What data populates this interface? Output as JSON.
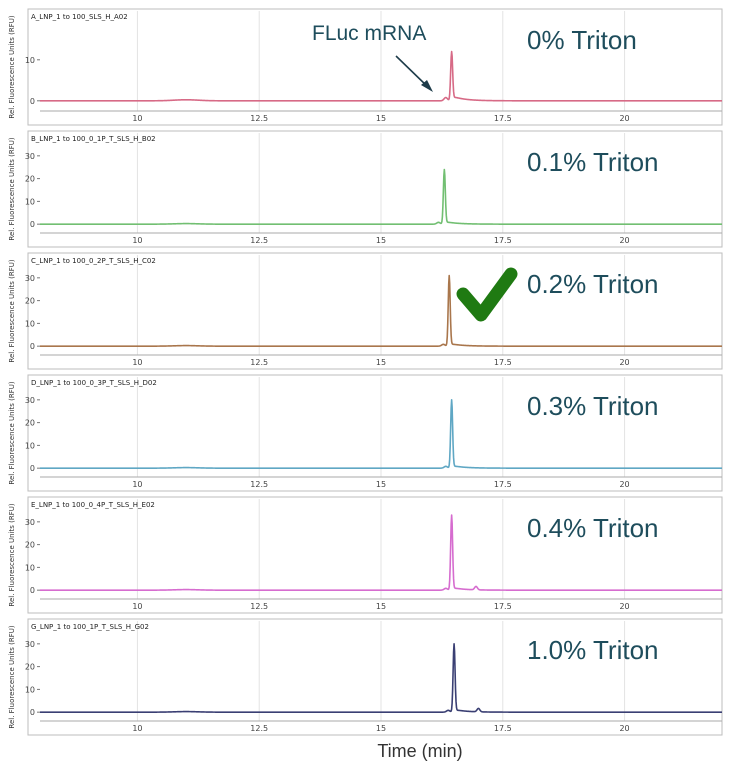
{
  "figure": {
    "x_axis_title": "Time (min)",
    "y_axis_title": "Rel. Fluorescence Units (RFU)",
    "annotation": "FLuc mRNA",
    "checkmark_color": "#1f7a12"
  },
  "chart_data": [
    {
      "type": "line",
      "title": "A_LNP_1 to 100_SLS_H_A02",
      "condition": "0% Triton",
      "color": "#d76a86",
      "xlim": [
        8,
        22
      ],
      "ylim": [
        -2,
        18
      ],
      "x_ticks": [
        10,
        12.5,
        15,
        17.5,
        20
      ],
      "x_tick_labels": [
        "10",
        "12.5",
        "15",
        "17.5",
        "20"
      ],
      "y_ticks": [
        0,
        10
      ],
      "y_tick_labels": [
        "0",
        "10"
      ],
      "peak": {
        "x": 16.45,
        "y": 12
      },
      "secondary_peak": null,
      "baseline": 0
    },
    {
      "type": "line",
      "title": "B_LNP_1 to 100_0_1P_T_SLS_H_B02",
      "condition": "0.1% Triton",
      "color": "#72bf72",
      "xlim": [
        8,
        22
      ],
      "ylim": [
        -3,
        33
      ],
      "x_ticks": [
        10,
        12.5,
        15,
        17.5,
        20
      ],
      "x_tick_labels": [
        "10",
        "12.5",
        "15",
        "17.5",
        "20"
      ],
      "y_ticks": [
        0,
        10,
        20,
        30
      ],
      "y_tick_labels": [
        "0",
        "10",
        "20",
        "30"
      ],
      "peak": {
        "x": 16.3,
        "y": 24
      },
      "secondary_peak": null,
      "baseline": 0
    },
    {
      "type": "line",
      "title": "C_LNP_1 to 100_0_2P_T_SLS_H_C02",
      "condition": "0.2% Triton",
      "color": "#a9764c",
      "xlim": [
        8,
        22
      ],
      "ylim": [
        -3,
        33
      ],
      "x_ticks": [
        10,
        12.5,
        15,
        17.5,
        20
      ],
      "x_tick_labels": [
        "10",
        "12.5",
        "15",
        "17.5",
        "20"
      ],
      "y_ticks": [
        0,
        10,
        20,
        30
      ],
      "y_tick_labels": [
        "0",
        "10",
        "20",
        "30"
      ],
      "peak": {
        "x": 16.4,
        "y": 31
      },
      "secondary_peak": null,
      "baseline": 0
    },
    {
      "type": "line",
      "title": "D_LNP_1 to 100_0_3P_T_SLS_H_D02",
      "condition": "0.3% Triton",
      "color": "#5fa7c4",
      "xlim": [
        8,
        22
      ],
      "ylim": [
        -3,
        33
      ],
      "x_ticks": [
        10,
        12.5,
        15,
        17.5,
        20
      ],
      "x_tick_labels": [
        "10",
        "12.5",
        "15",
        "17.5",
        "20"
      ],
      "y_ticks": [
        0,
        10,
        20,
        30
      ],
      "y_tick_labels": [
        "0",
        "10",
        "20",
        "30"
      ],
      "peak": {
        "x": 16.45,
        "y": 30
      },
      "secondary_peak": null,
      "baseline": 0
    },
    {
      "type": "line",
      "title": "E_LNP_1 to 100_0_4P_T_SLS_H_E02",
      "condition": "0.4% Triton",
      "color": "#d66ccf",
      "xlim": [
        8,
        22
      ],
      "ylim": [
        -3,
        33
      ],
      "x_ticks": [
        10,
        12.5,
        15,
        17.5,
        20
      ],
      "x_tick_labels": [
        "10",
        "12.5",
        "15",
        "17.5",
        "20"
      ],
      "y_ticks": [
        0,
        10,
        20,
        30
      ],
      "y_tick_labels": [
        "0",
        "10",
        "20",
        "30"
      ],
      "peak": {
        "x": 16.45,
        "y": 33
      },
      "secondary_peak": {
        "x": 16.95,
        "y": 1.5
      },
      "baseline": 0
    },
    {
      "type": "line",
      "title": "G_LNP_1 to 100_1P_T_SLS_H_G02",
      "condition": "1.0% Triton",
      "color": "#3a3f73",
      "xlim": [
        8,
        22
      ],
      "ylim": [
        -3,
        33
      ],
      "x_ticks": [
        10,
        12.5,
        15,
        17.5,
        20
      ],
      "x_tick_labels": [
        "10",
        "12.5",
        "15",
        "17.5",
        "20"
      ],
      "y_ticks": [
        0,
        10,
        20,
        30
      ],
      "y_tick_labels": [
        "0",
        "10",
        "20",
        "30"
      ],
      "peak": {
        "x": 16.5,
        "y": 30
      },
      "secondary_peak": {
        "x": 17.0,
        "y": 1.5
      },
      "baseline": 0
    }
  ]
}
